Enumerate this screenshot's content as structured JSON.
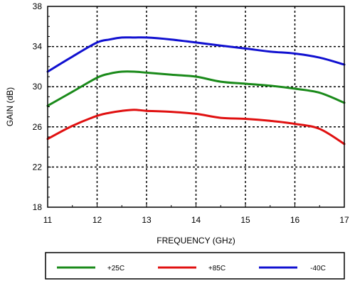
{
  "chart_data": {
    "type": "line",
    "xlabel": "FREQUENCY (GHz)",
    "ylabel": "GAIN (dB)",
    "xlim": [
      11,
      17
    ],
    "ylim": [
      18,
      38
    ],
    "xticks": [
      11,
      12,
      13,
      14,
      15,
      16,
      17
    ],
    "yticks": [
      18,
      22,
      26,
      30,
      34,
      38
    ],
    "grid": true,
    "grid_style": "dotted",
    "legend_position": "bottom",
    "series": [
      {
        "name": "+25C",
        "color": "#1a8a1a",
        "x": [
          11,
          11.5,
          12,
          12.25,
          12.5,
          12.75,
          13,
          13.5,
          14,
          14.5,
          15,
          15.5,
          16,
          16.5,
          17
        ],
        "y": [
          28.1,
          29.5,
          30.9,
          31.3,
          31.5,
          31.5,
          31.4,
          31.2,
          31.0,
          30.5,
          30.3,
          30.1,
          29.8,
          29.4,
          28.4
        ]
      },
      {
        "name": "+85C",
        "color": "#e01010",
        "x": [
          11,
          11.5,
          12,
          12.25,
          12.5,
          12.75,
          13,
          13.5,
          14,
          14.5,
          15,
          15.5,
          16,
          16.5,
          17
        ],
        "y": [
          24.8,
          26.1,
          27.1,
          27.4,
          27.6,
          27.7,
          27.6,
          27.5,
          27.3,
          26.9,
          26.8,
          26.6,
          26.3,
          25.8,
          24.3
        ]
      },
      {
        "name": "-40C",
        "color": "#1010d0",
        "x": [
          11,
          11.5,
          12,
          12.25,
          12.5,
          12.75,
          13,
          13.5,
          14,
          14.5,
          15,
          15.5,
          16,
          16.5,
          17
        ],
        "y": [
          31.5,
          33.0,
          34.4,
          34.7,
          34.9,
          34.9,
          34.9,
          34.7,
          34.4,
          34.1,
          33.8,
          33.5,
          33.3,
          32.9,
          32.2
        ]
      }
    ]
  }
}
